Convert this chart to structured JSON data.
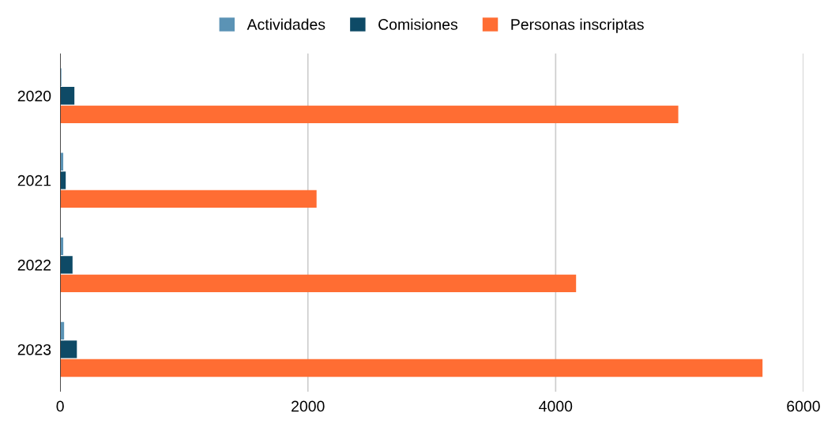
{
  "chart_data": {
    "type": "bar",
    "orientation": "horizontal",
    "categories": [
      "2020",
      "2021",
      "2022",
      "2023"
    ],
    "series": [
      {
        "name": "Actividades",
        "color": "#5b93b5",
        "values": [
          10,
          25,
          25,
          32
        ]
      },
      {
        "name": "Comisiones",
        "color": "#0e4a66",
        "values": [
          115,
          45,
          100,
          135
        ]
      },
      {
        "name": "Personas inscriptas",
        "color": "#ff6d33",
        "values": [
          4990,
          2070,
          4165,
          5670
        ]
      }
    ],
    "xlim": [
      0,
      6000
    ],
    "xticks": [
      0,
      2000,
      4000,
      6000
    ],
    "grid": "x",
    "legend": "top"
  }
}
